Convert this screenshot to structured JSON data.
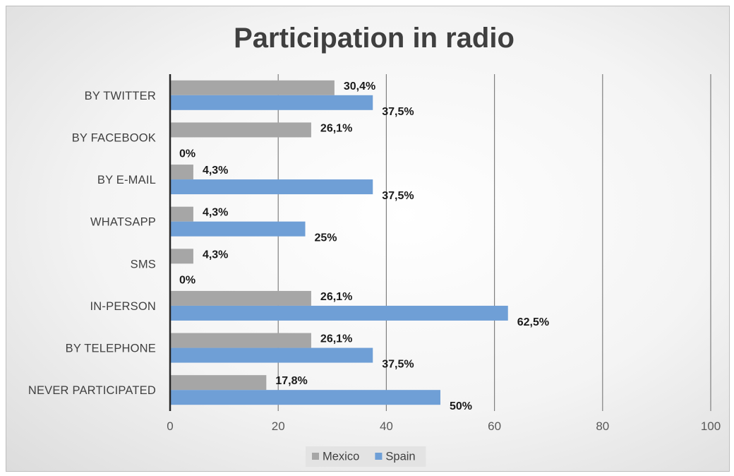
{
  "chart_data": {
    "type": "bar",
    "orientation": "horizontal",
    "title": "Participation in radio",
    "categories": [
      "BY TWITTER",
      "BY FACEBOOK",
      "BY E-MAIL",
      "WHATSAPP",
      "SMS",
      "IN-PERSON",
      "BY TELEPHONE",
      "NEVER PARTICIPATED"
    ],
    "series": [
      {
        "name": "Mexico",
        "color": "#a6a6a6",
        "values": [
          30.4,
          26.1,
          4.3,
          4.3,
          4.3,
          26.1,
          26.1,
          17.8
        ],
        "labels": [
          "30,4%",
          "26,1%",
          "4,3%",
          "4,3%",
          "4,3%",
          "26,1%",
          "26,1%",
          "17,8%"
        ]
      },
      {
        "name": "Spain",
        "color": "#6f9fd6",
        "values": [
          37.5,
          0,
          37.5,
          25,
          0,
          62.5,
          37.5,
          50
        ],
        "labels": [
          "37,5%",
          "0%",
          "37,5%",
          "25%",
          "0%",
          "62,5%",
          "37,5%",
          "50%"
        ]
      }
    ],
    "xlim": [
      0,
      100
    ],
    "xticks": [
      0,
      20,
      40,
      60,
      80,
      100
    ],
    "xtick_labels": [
      "0",
      "20",
      "40",
      "60",
      "80",
      "100"
    ],
    "grid": true,
    "legend": "bottom"
  }
}
